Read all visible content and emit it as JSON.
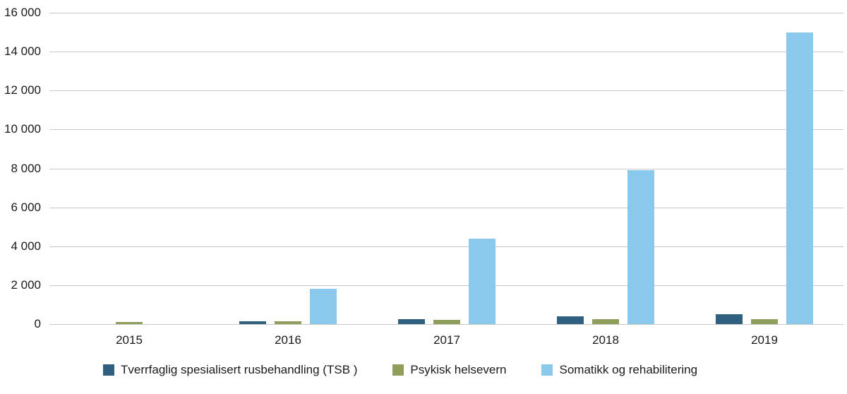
{
  "chart_data": {
    "type": "bar",
    "title": "",
    "categories": [
      "2015",
      "2016",
      "2017",
      "2018",
      "2019"
    ],
    "series": [
      {
        "name": "Tverrfaglig spesialisert rusbehandling (TSB )",
        "color": "#2f607f",
        "values": [
          0,
          150,
          250,
          400,
          500
        ]
      },
      {
        "name": "Psykisk helsevern",
        "color": "#8f9e5b",
        "values": [
          100,
          150,
          200,
          250,
          250
        ]
      },
      {
        "name": "Somatikk og rehabilitering",
        "color": "#8bc9ec",
        "values": [
          0,
          1800,
          4400,
          7900,
          15000
        ]
      }
    ],
    "ylim": [
      0,
      16000
    ],
    "ytick_step": 2000,
    "ytick_labels": [
      "0",
      "2 000",
      "4 000",
      "6 000",
      "8 000",
      "10 000",
      "12 000",
      "14 000",
      "16 000"
    ],
    "xlabel": "",
    "ylabel": "",
    "grid": true,
    "grid_color": "#c8c8c8",
    "text_color": "#1a1a1a",
    "legend_position": "bottom"
  }
}
